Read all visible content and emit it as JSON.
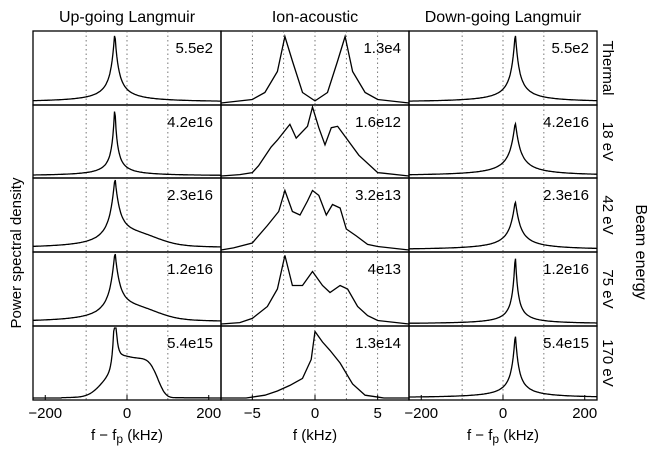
{
  "figure": {
    "ylabel": "Power spectral density",
    "side_label": "Beam energy"
  },
  "colors": {
    "line": "#000000",
    "grid": "#555555",
    "frame": "#000000"
  },
  "chart_data": [
    {
      "type": "line",
      "title": "Up-going Langmuir",
      "xlabel": "f − f_p (kHz)",
      "xlabel_main": "f − f",
      "xlabel_sub": "p",
      "xlabel_unit": " (kHz)",
      "xlim": [
        -230,
        230
      ],
      "xticks": [
        -200,
        0,
        200
      ],
      "xtick_labels": [
        "−200",
        "0",
        "200"
      ],
      "grid_x": [
        -100,
        0,
        100
      ],
      "rows": [
        {
          "row_label": "Thermal",
          "scale": "5.5e2",
          "peak_type": "sym",
          "center": -30,
          "width": 9,
          "floor": 0.01,
          "ymax": 1.0
        },
        {
          "row_label": "18 eV",
          "scale": "4.2e16",
          "peak_type": "sym",
          "center": -30,
          "width": 6,
          "floor": 0.0,
          "ymax": 1.0
        },
        {
          "row_label": "42 eV",
          "scale": "2.3e16",
          "peak_type": "sym_shoulder",
          "center": -30,
          "width": 12,
          "floor": 0.02,
          "ymax": 1.0
        },
        {
          "row_label": "75 eV",
          "scale": "1.2e16",
          "peak_type": "sym_shoulder",
          "center": -30,
          "width": 12,
          "floor": 0.02,
          "ymax": 1.0
        },
        {
          "row_label": "170 eV",
          "scale": "5.4e15",
          "peak_type": "beam_170",
          "center": -30,
          "width": 5,
          "floor": 0.0,
          "ymax": 1.0
        }
      ]
    },
    {
      "type": "line",
      "title": "Ion-acoustic",
      "xlabel": "f (kHz)",
      "xlabel_main": "f (kHz)",
      "xlabel_sub": "",
      "xlabel_unit": "",
      "xlim": [
        -7.5,
        7.5
      ],
      "xticks": [
        -5,
        0,
        5
      ],
      "xtick_labels": [
        "−5",
        "0",
        "5"
      ],
      "grid_x": [
        -5,
        -2.5,
        0,
        2.5,
        5
      ],
      "rows": [
        {
          "scale": "1.3e4",
          "points": [
            [
              -7.5,
              0.0
            ],
            [
              -5,
              0.05
            ],
            [
              -4,
              0.15
            ],
            [
              -3,
              0.45
            ],
            [
              -2.4,
              0.95
            ],
            [
              -1.8,
              0.6
            ],
            [
              -1,
              0.15
            ],
            [
              0,
              0.03
            ],
            [
              1,
              0.15
            ],
            [
              1.8,
              0.6
            ],
            [
              2.4,
              0.95
            ],
            [
              3,
              0.45
            ],
            [
              4,
              0.15
            ],
            [
              5,
              0.05
            ],
            [
              7.5,
              0.0
            ]
          ]
        },
        {
          "scale": "1.6e12",
          "points": [
            [
              -7.5,
              0.0
            ],
            [
              -6,
              0.02
            ],
            [
              -5,
              0.05
            ],
            [
              -4.5,
              0.15
            ],
            [
              -3.5,
              0.42
            ],
            [
              -3,
              0.52
            ],
            [
              -2,
              0.75
            ],
            [
              -1.5,
              0.55
            ],
            [
              -0.6,
              0.72
            ],
            [
              -0.2,
              1.0
            ],
            [
              0.3,
              0.7
            ],
            [
              0.8,
              0.45
            ],
            [
              1.3,
              0.7
            ],
            [
              1.8,
              0.72
            ],
            [
              2.5,
              0.55
            ],
            [
              3.5,
              0.3
            ],
            [
              5,
              0.05
            ],
            [
              7.5,
              0.0
            ]
          ]
        },
        {
          "scale": "3.2e13",
          "points": [
            [
              -7.5,
              0.0
            ],
            [
              -6.5,
              0.03
            ],
            [
              -5,
              0.1
            ],
            [
              -3.8,
              0.35
            ],
            [
              -2.9,
              0.55
            ],
            [
              -2.4,
              0.85
            ],
            [
              -1.8,
              0.55
            ],
            [
              -1.2,
              0.5
            ],
            [
              -0.6,
              0.7
            ],
            [
              -0.2,
              0.85
            ],
            [
              0.3,
              0.78
            ],
            [
              0.9,
              0.5
            ],
            [
              1.4,
              0.65
            ],
            [
              2.0,
              0.6
            ],
            [
              2.5,
              0.3
            ],
            [
              3.3,
              0.2
            ],
            [
              4.2,
              0.08
            ],
            [
              5,
              0.05
            ],
            [
              7.5,
              0.0
            ]
          ]
        },
        {
          "scale": "4e13",
          "points": [
            [
              -7.5,
              0.0
            ],
            [
              -6,
              0.02
            ],
            [
              -5,
              0.08
            ],
            [
              -3.8,
              0.25
            ],
            [
              -3,
              0.5
            ],
            [
              -2.4,
              0.98
            ],
            [
              -1.8,
              0.55
            ],
            [
              -1,
              0.55
            ],
            [
              -0.2,
              0.75
            ],
            [
              0.6,
              0.55
            ],
            [
              1.2,
              0.45
            ],
            [
              2,
              0.55
            ],
            [
              2.6,
              0.5
            ],
            [
              3.4,
              0.25
            ],
            [
              4.2,
              0.12
            ],
            [
              5,
              0.05
            ],
            [
              7.5,
              0.0
            ]
          ]
        },
        {
          "scale": "1.3e14",
          "points": [
            [
              -7.5,
              0.0
            ],
            [
              -5.5,
              0.0
            ],
            [
              -4,
              0.04
            ],
            [
              -3,
              0.1
            ],
            [
              -2,
              0.18
            ],
            [
              -1,
              0.28
            ],
            [
              -0.3,
              0.55
            ],
            [
              0,
              0.95
            ],
            [
              0.6,
              0.8
            ],
            [
              1.2,
              0.68
            ],
            [
              2,
              0.5
            ],
            [
              3,
              0.2
            ],
            [
              4,
              0.04
            ],
            [
              5.5,
              0.0
            ],
            [
              7.5,
              0.0
            ]
          ]
        }
      ]
    },
    {
      "type": "line",
      "title": "Down-going Langmuir",
      "xlabel": "f − f_p (kHz)",
      "xlabel_main": "f − f",
      "xlabel_sub": "p",
      "xlabel_unit": " (kHz)",
      "xlim": [
        -230,
        230
      ],
      "xticks": [
        -200,
        0,
        200
      ],
      "xtick_labels": [
        "−200",
        "0",
        "200"
      ],
      "grid_x": [
        -100,
        0,
        100
      ],
      "rows": [
        {
          "scale": "5.5e2",
          "peak_type": "sym",
          "center": 30,
          "width": 9,
          "floor": 0.01,
          "ymax": 1.0
        },
        {
          "scale": "4.2e16",
          "peak_type": "sym",
          "center": 30,
          "width": 12,
          "floor": 0.0,
          "ymax": 0.78
        },
        {
          "scale": "2.3e16",
          "peak_type": "sym",
          "center": 30,
          "width": 12,
          "floor": 0.0,
          "ymax": 0.7
        },
        {
          "scale": "1.2e16",
          "peak_type": "sym",
          "center": 30,
          "width": 6,
          "floor": 0.0,
          "ymax": 1.0
        },
        {
          "scale": "5.4e15",
          "peak_type": "sym",
          "center": 30,
          "width": 8,
          "floor": 0.0,
          "ymax": 0.92
        }
      ]
    }
  ]
}
